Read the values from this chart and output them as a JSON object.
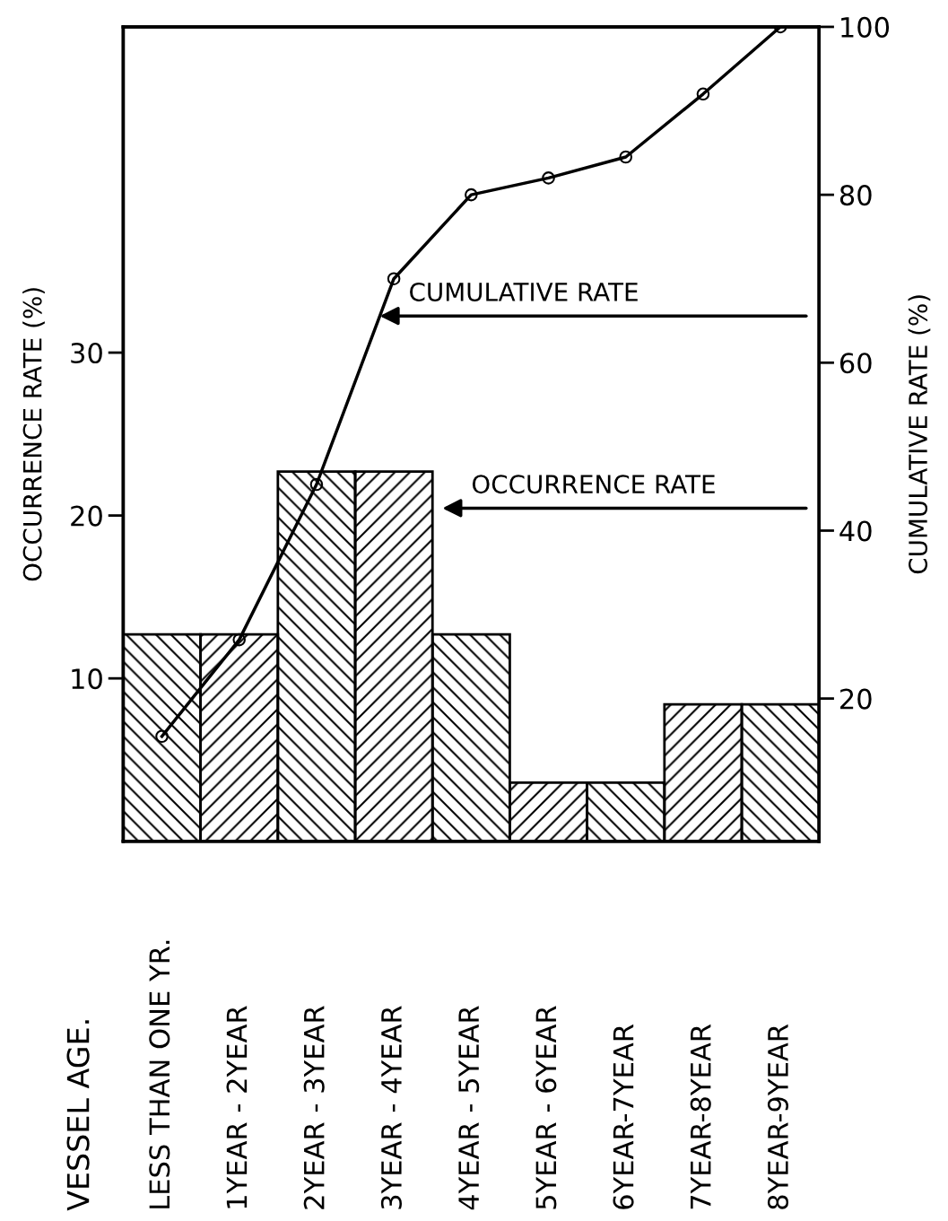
{
  "chart_data": {
    "type": "bar",
    "ylabel": "OCCURRENCE RATE (%)",
    "y2label": "CUMULATIVE RATE (%)",
    "categories": [
      "LESS THAN ONE YR.",
      "1YEAR - 2YEAR",
      "2YEAR - 3YEAR",
      "3YEAR - 4YEAR",
      "4YEAR - 5YEAR",
      "5YEAR - 6YEAR",
      "6YEAR-7YEAR",
      "7YEAR-8YEAR",
      "8YEAR-9YEAR"
    ],
    "series": [
      {
        "color": "#000000",
        "values": [
          12.7,
          12.7,
          22.7,
          22.7,
          12.7,
          3.6,
          3.6,
          8.4,
          8.4
        ]
      },
      {
        "type": "line",
        "axis": "y2",
        "color": "#000000",
        "marker": "circle",
        "values": [
          15.5,
          27,
          45.5,
          70,
          80,
          82,
          84.5,
          92,
          100
        ]
      }
    ],
    "ylim": [
      0,
      50
    ],
    "yticks": [
      10,
      20,
      30
    ],
    "y2lim": [
      3,
      100
    ],
    "y2ticks": [
      20,
      40,
      60,
      80,
      100
    ],
    "annotations": [
      "CUMULATIVE RATE",
      "OCCURRENCE RATE",
      "VESSEL AGE."
    ],
    "grid": false,
    "legend": false
  }
}
